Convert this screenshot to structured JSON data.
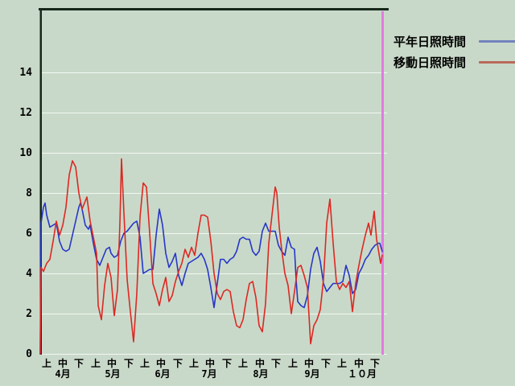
{
  "page": {
    "background_color": "#c9d9c9",
    "frame_color": "#15281a",
    "gridline_color": "#f2f8f2"
  },
  "legend": {
    "items": [
      {
        "label": "平年日照時間",
        "line_color": "#7383bd"
      },
      {
        "label": "移動日照時間",
        "line_color": "#b8695b"
      }
    ]
  },
  "chart_data": {
    "type": "line",
    "title": "",
    "xlabel": "",
    "ylabel": "",
    "y_unit": "hours of sunshine per day",
    "ylim": [
      0,
      17.2
    ],
    "y_ticks": [
      0,
      2,
      4,
      6,
      8,
      10,
      12,
      14
    ],
    "x_unit": "days from April 1",
    "xlim": [
      0,
      214
    ],
    "x_period_ticks": [
      {
        "label": "上",
        "day": 4
      },
      {
        "label": "中",
        "day": 14
      },
      {
        "label": "下",
        "day": 24
      },
      {
        "label": "上",
        "day": 34.5
      },
      {
        "label": "中",
        "day": 44.5
      },
      {
        "label": "下",
        "day": 55
      },
      {
        "label": "上",
        "day": 65
      },
      {
        "label": "中",
        "day": 75
      },
      {
        "label": "下",
        "day": 85.5
      },
      {
        "label": "上",
        "day": 95.5
      },
      {
        "label": "中",
        "day": 105.5
      },
      {
        "label": "下",
        "day": 116
      },
      {
        "label": "上",
        "day": 126
      },
      {
        "label": "中",
        "day": 136.5
      },
      {
        "label": "下",
        "day": 146.5
      },
      {
        "label": "上",
        "day": 157
      },
      {
        "label": "中",
        "day": 167
      },
      {
        "label": "下",
        "day": 177.5
      },
      {
        "label": "上",
        "day": 187.5
      },
      {
        "label": "中",
        "day": 198
      },
      {
        "label": "下",
        "day": 208
      }
    ],
    "x_month_labels": [
      {
        "label": "4月",
        "day": 14
      },
      {
        "label": "5月",
        "day": 45
      },
      {
        "label": "6月",
        "day": 76
      },
      {
        "label": "7月",
        "day": 105
      },
      {
        "label": "8月",
        "day": 137
      },
      {
        "label": "9月",
        "day": 169
      },
      {
        "label": "１０月",
        "day": 200
      }
    ],
    "marker_line": {
      "day": 212.5,
      "color": "#e07ce0"
    },
    "series": [
      {
        "name": "平年日照時間",
        "color": "#2636c8",
        "points": [
          [
            0,
            0
          ],
          [
            0.5,
            6.5
          ],
          [
            2,
            7.3
          ],
          [
            3,
            7.5
          ],
          [
            4,
            6.9
          ],
          [
            6,
            6.3
          ],
          [
            8,
            6.4
          ],
          [
            10,
            6.5
          ],
          [
            12,
            5.6
          ],
          [
            14,
            5.2
          ],
          [
            16,
            5.1
          ],
          [
            18,
            5.2
          ],
          [
            20,
            5.9
          ],
          [
            22,
            6.6
          ],
          [
            24,
            7.3
          ],
          [
            25,
            7.5
          ],
          [
            26,
            7.2
          ],
          [
            28,
            6.4
          ],
          [
            30,
            6.2
          ],
          [
            31,
            6.4
          ],
          [
            33,
            5.5
          ],
          [
            35,
            4.7
          ],
          [
            37,
            4.4
          ],
          [
            39,
            4.8
          ],
          [
            41,
            5.2
          ],
          [
            43,
            5.3
          ],
          [
            44,
            5.0
          ],
          [
            46,
            4.8
          ],
          [
            48,
            4.9
          ],
          [
            50,
            5.6
          ],
          [
            52,
            6.0
          ],
          [
            54,
            6.1
          ],
          [
            56,
            6.3
          ],
          [
            58,
            6.5
          ],
          [
            60,
            6.6
          ],
          [
            62,
            5.8
          ],
          [
            64,
            4.0
          ],
          [
            66,
            4.1
          ],
          [
            68,
            4.2
          ],
          [
            70,
            4.2
          ],
          [
            72,
            5.9
          ],
          [
            74,
            7.2
          ],
          [
            76,
            6.4
          ],
          [
            78,
            5.0
          ],
          [
            80,
            4.3
          ],
          [
            82,
            4.6
          ],
          [
            84,
            5.0
          ],
          [
            86,
            3.9
          ],
          [
            88,
            3.4
          ],
          [
            90,
            4.0
          ],
          [
            92,
            4.5
          ],
          [
            94,
            4.6
          ],
          [
            96,
            4.7
          ],
          [
            98,
            4.8
          ],
          [
            100,
            5.0
          ],
          [
            102,
            4.7
          ],
          [
            104,
            4.2
          ],
          [
            106,
            3.3
          ],
          [
            108,
            2.3
          ],
          [
            110,
            3.5
          ],
          [
            112,
            4.7
          ],
          [
            114,
            4.7
          ],
          [
            116,
            4.5
          ],
          [
            118,
            4.7
          ],
          [
            120,
            4.8
          ],
          [
            122,
            5.1
          ],
          [
            124,
            5.7
          ],
          [
            126,
            5.8
          ],
          [
            128,
            5.7
          ],
          [
            130,
            5.7
          ],
          [
            132,
            5.1
          ],
          [
            134,
            4.9
          ],
          [
            136,
            5.1
          ],
          [
            138,
            6.1
          ],
          [
            140,
            6.5
          ],
          [
            142,
            6.1
          ],
          [
            144,
            6.1
          ],
          [
            146,
            6.1
          ],
          [
            148,
            5.4
          ],
          [
            150,
            5.1
          ],
          [
            152,
            4.9
          ],
          [
            154,
            5.8
          ],
          [
            156,
            5.3
          ],
          [
            158,
            5.2
          ],
          [
            159,
            3.7
          ],
          [
            160,
            2.6
          ],
          [
            162,
            2.4
          ],
          [
            164,
            2.3
          ],
          [
            166,
            2.9
          ],
          [
            168,
            4.2
          ],
          [
            170,
            5.0
          ],
          [
            172,
            5.3
          ],
          [
            174,
            4.6
          ],
          [
            176,
            3.5
          ],
          [
            178,
            3.1
          ],
          [
            180,
            3.3
          ],
          [
            182,
            3.5
          ],
          [
            184,
            3.5
          ],
          [
            186,
            3.5
          ],
          [
            188,
            3.6
          ],
          [
            190,
            4.4
          ],
          [
            192,
            3.9
          ],
          [
            194,
            3.0
          ],
          [
            196,
            3.2
          ],
          [
            198,
            4.0
          ],
          [
            200,
            4.3
          ],
          [
            202,
            4.7
          ],
          [
            204,
            4.9
          ],
          [
            206,
            5.2
          ],
          [
            208,
            5.4
          ],
          [
            210,
            5.5
          ],
          [
            211,
            5.5
          ],
          [
            212.5,
            5.1
          ]
        ]
      },
      {
        "name": "移動日照時間",
        "color": "#dc2822",
        "points": [
          [
            0,
            0
          ],
          [
            0.5,
            4.3
          ],
          [
            2,
            4.1
          ],
          [
            4,
            4.5
          ],
          [
            6,
            4.7
          ],
          [
            8,
            5.6
          ],
          [
            10,
            6.6
          ],
          [
            12,
            5.9
          ],
          [
            14,
            6.4
          ],
          [
            16,
            7.3
          ],
          [
            18,
            8.9
          ],
          [
            20,
            9.6
          ],
          [
            22,
            9.3
          ],
          [
            24,
            8.0
          ],
          [
            26,
            7.2
          ],
          [
            28,
            7.6
          ],
          [
            29,
            7.8
          ],
          [
            31,
            6.6
          ],
          [
            33,
            5.8
          ],
          [
            35,
            5.0
          ],
          [
            36,
            2.4
          ],
          [
            38,
            1.7
          ],
          [
            40,
            3.4
          ],
          [
            42,
            4.5
          ],
          [
            44,
            3.8
          ],
          [
            46,
            1.9
          ],
          [
            48,
            3.2
          ],
          [
            49.5,
            6.5
          ],
          [
            50.5,
            9.7
          ],
          [
            52,
            7.0
          ],
          [
            54,
            3.7
          ],
          [
            56,
            2.1
          ],
          [
            58,
            0.6
          ],
          [
            60,
            3.0
          ],
          [
            62,
            6.8
          ],
          [
            64,
            8.5
          ],
          [
            66,
            8.3
          ],
          [
            68,
            6.0
          ],
          [
            70,
            3.5
          ],
          [
            72,
            3.0
          ],
          [
            74,
            2.4
          ],
          [
            76,
            3.2
          ],
          [
            78,
            3.8
          ],
          [
            80,
            2.6
          ],
          [
            82,
            2.9
          ],
          [
            84,
            3.6
          ],
          [
            86,
            4.1
          ],
          [
            88,
            4.5
          ],
          [
            90,
            5.2
          ],
          [
            92,
            4.8
          ],
          [
            94,
            5.3
          ],
          [
            96,
            4.9
          ],
          [
            98,
            6.0
          ],
          [
            100,
            6.9
          ],
          [
            102,
            6.9
          ],
          [
            104,
            6.8
          ],
          [
            106,
            5.6
          ],
          [
            108,
            4.0
          ],
          [
            110,
            3.0
          ],
          [
            112,
            2.7
          ],
          [
            114,
            3.1
          ],
          [
            116,
            3.2
          ],
          [
            118,
            3.1
          ],
          [
            120,
            2.1
          ],
          [
            122,
            1.4
          ],
          [
            124,
            1.3
          ],
          [
            126,
            1.7
          ],
          [
            128,
            2.7
          ],
          [
            130,
            3.5
          ],
          [
            132,
            3.6
          ],
          [
            134,
            2.8
          ],
          [
            136,
            1.4
          ],
          [
            138,
            1.1
          ],
          [
            140,
            2.5
          ],
          [
            142,
            5.5
          ],
          [
            144,
            6.9
          ],
          [
            146,
            8.3
          ],
          [
            147,
            8.0
          ],
          [
            148.5,
            6.3
          ],
          [
            150,
            5.2
          ],
          [
            152,
            4.0
          ],
          [
            154,
            3.4
          ],
          [
            156,
            2.0
          ],
          [
            158,
            3.1
          ],
          [
            160,
            4.3
          ],
          [
            162,
            4.4
          ],
          [
            164,
            3.9
          ],
          [
            166,
            3.3
          ],
          [
            168,
            0.5
          ],
          [
            170,
            1.4
          ],
          [
            172,
            1.7
          ],
          [
            174,
            2.2
          ],
          [
            176,
            3.7
          ],
          [
            178,
            6.5
          ],
          [
            180,
            7.7
          ],
          [
            182,
            5.5
          ],
          [
            184,
            3.6
          ],
          [
            186,
            3.2
          ],
          [
            188,
            3.5
          ],
          [
            190,
            3.3
          ],
          [
            192,
            3.6
          ],
          [
            194,
            2.1
          ],
          [
            196,
            3.5
          ],
          [
            198,
            4.4
          ],
          [
            200,
            5.2
          ],
          [
            202,
            5.9
          ],
          [
            204,
            6.5
          ],
          [
            205.5,
            5.9
          ],
          [
            207.5,
            7.1
          ],
          [
            209,
            5.7
          ],
          [
            211.5,
            4.5
          ],
          [
            212.5,
            4.9
          ]
        ]
      }
    ]
  }
}
